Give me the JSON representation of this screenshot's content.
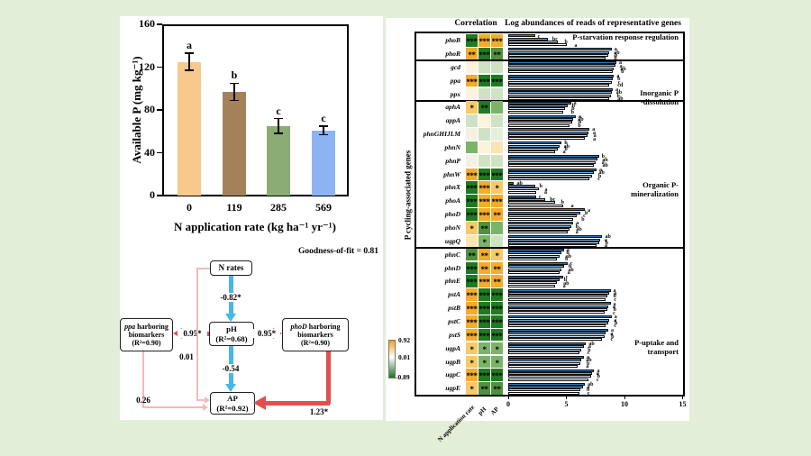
{
  "chart_data": [
    {
      "type": "bar",
      "title": "",
      "ylabel": "Available P  (mg kg⁻¹)",
      "xlabel": "N application rate (kg ha⁻¹ yr⁻¹)",
      "categories": [
        "0",
        "119",
        "285",
        "569"
      ],
      "values": [
        125,
        97,
        65,
        61
      ],
      "errors": [
        8,
        8,
        7,
        4
      ],
      "sig_letters": [
        "a",
        "b",
        "c",
        "c"
      ],
      "bar_colors": [
        "#f7c98c",
        "#a5815a",
        "#8bac72",
        "#8cb4f2"
      ],
      "ylim": [
        0,
        160
      ],
      "yticks": [
        0,
        40,
        80,
        120,
        160
      ]
    },
    {
      "type": "heatmap+barh",
      "title_correlation": "Correlation",
      "title_bars": "Log abundances of reads of representative genes",
      "ylabel": "P cycling-associated genes",
      "correlation_columns": [
        "N application rate",
        "pH",
        "AP"
      ],
      "xticks": [
        0,
        5,
        10,
        15
      ],
      "xlim": [
        0,
        15
      ],
      "colorbar": {
        "max_label": "0.92",
        "mid_label": "0.01",
        "min_label": "-0.89",
        "top_color": "#f0a01e",
        "mid_color": "#ffffff",
        "bottom_color": "#1c741c"
      },
      "bar_series_colors": [
        "#2e75b6",
        "#6fa8dc",
        "#c9ddf0",
        "#ffffff"
      ],
      "groups": [
        {
          "label": "P-starvation response regulation",
          "genes": [
            {
              "name": "phoB",
              "cell_colors": [
                "#217a21",
                "#f4ac2a",
                "#f4ac2a"
              ],
              "stars": [
                "***",
                "***",
                "***"
              ],
              "bars": [
                2.3,
                3.4,
                4.3,
                5.0
              ],
              "letters": [
                "c",
                "bc",
                "b",
                "a"
              ]
            },
            {
              "name": "phoR",
              "cell_colors": [
                "#f4ac2a",
                "#217a21",
                "#4f9140"
              ],
              "stars": [
                "**",
                "***",
                "**"
              ],
              "bars": [
                8.9,
                8.7,
                8.6,
                8.4
              ],
              "letters": [
                "a",
                "ab",
                "b",
                "b"
              ]
            }
          ]
        },
        {
          "label": "Inorganic P\n-dissolution",
          "genes": [
            {
              "name": "gcd",
              "cell_colors": [
                "#fdf3dc",
                "#cfe3c4",
                "#cfe3c4"
              ],
              "stars": [
                "",
                "",
                ""
              ],
              "bars": [
                9.3,
                9.2,
                9.1,
                9.0
              ],
              "letters": [
                "a",
                "a",
                "ab",
                "b"
              ]
            },
            {
              "name": "ppa",
              "cell_colors": [
                "#f4ac2a",
                "#217a21",
                "#217a21"
              ],
              "stars": [
                "***",
                "***",
                "***"
              ],
              "bars": [
                9.1,
                9.0,
                8.9,
                8.7
              ],
              "letters": [
                "a",
                "b",
                "c",
                "cd"
              ]
            },
            {
              "name": "ppx",
              "cell_colors": [
                "#fdf3dc",
                "#cfe3c4",
                "#cfe3c4"
              ],
              "stars": [
                "",
                "",
                ""
              ],
              "bars": [
                9.0,
                8.9,
                8.8,
                8.7
              ],
              "letters": [
                "a",
                "ab",
                "b",
                "ab"
              ]
            }
          ]
        },
        {
          "label": "Organic P-mineralization",
          "genes": [
            {
              "name": "aphA",
              "cell_colors": [
                "#f8c968",
                "#217a21",
                "#7ab468"
              ],
              "stars": [
                "*",
                "**",
                ""
              ],
              "bars": [
                5.4,
                5.1,
                4.9,
                4.7
              ],
              "letters": [
                "a",
                "b",
                "b",
                "b"
              ]
            },
            {
              "name": "appA",
              "cell_colors": [
                "#cfe3c4",
                "#fdf3dc",
                "#cfe3c4"
              ],
              "stars": [
                "",
                "",
                ""
              ],
              "bars": [
                5.8,
                5.6,
                5.5,
                5.3
              ],
              "letters": [
                "a",
                "ab",
                "b",
                "b"
              ]
            },
            {
              "name": "phnGHIJLM",
              "cell_colors": [
                "#f4f1e4",
                "#cfe3c4",
                "#e4efdc"
              ],
              "stars": [
                "",
                "",
                ""
              ],
              "bars": [
                7.0,
                6.9,
                6.8,
                6.6
              ],
              "letters": [
                "a",
                "a",
                "a",
                "a"
              ]
            },
            {
              "name": "phnN",
              "cell_colors": [
                "#7ab468",
                "#fdf3dc",
                "#fbe4b4"
              ],
              "stars": [
                "",
                "",
                ""
              ],
              "bars": [
                4.6,
                4.4,
                4.3,
                4.0
              ],
              "letters": [
                "b",
                "ab",
                "b",
                "a"
              ]
            },
            {
              "name": "phnP",
              "cell_colors": [
                "#f4f1e4",
                "#cfe3c4",
                "#cfe3c4"
              ],
              "stars": [
                "",
                "",
                ""
              ],
              "bars": [
                7.8,
                7.7,
                7.5,
                7.4
              ],
              "letters": [
                "b",
                "ab",
                "a",
                "ab"
              ]
            },
            {
              "name": "phnW",
              "cell_colors": [
                "#f4ac2a",
                "#217a21",
                "#217a21"
              ],
              "stars": [
                "***",
                "***",
                "***"
              ],
              "bars": [
                7.6,
                7.4,
                7.2,
                7.0
              ],
              "letters": [
                "a",
                "ab",
                "b",
                "c"
              ]
            },
            {
              "name": "phnX",
              "cell_colors": [
                "#217a21",
                "#f4ac2a",
                "#f8c968"
              ],
              "stars": [
                "***",
                "***",
                "*"
              ],
              "bars": [
                0.5,
                2.3,
                2.6,
                2.4
              ],
              "letters": [
                "ab",
                "b",
                "a",
                "a"
              ]
            },
            {
              "name": "phoA",
              "cell_colors": [
                "#217a21",
                "#f4ac2a",
                "#f4ac2a"
              ],
              "stars": [
                "***",
                "***",
                "***"
              ],
              "bars": [
                2.4,
                3.2,
                4.0,
                4.7
              ],
              "letters": [
                "c",
                "bc",
                "b",
                "a"
              ]
            },
            {
              "name": "phoD",
              "cell_colors": [
                "#217a21",
                "#f4ac2a",
                "#f4ac2a"
              ],
              "stars": [
                "***",
                "***",
                "**"
              ],
              "bars": [
                6.6,
                6.2,
                5.9,
                5.6
              ],
              "letters": [
                "a",
                "b",
                "c",
                "b"
              ]
            },
            {
              "name": "phoN",
              "cell_colors": [
                "#f8c968",
                "#4f9140",
                "#7ab468"
              ],
              "stars": [
                "*",
                "**",
                ""
              ],
              "bars": [
                5.6,
                5.4,
                5.3,
                5.1
              ],
              "letters": [
                "a",
                "b",
                "ab",
                "a"
              ]
            },
            {
              "name": "ugpQ",
              "cell_colors": [
                "#fbe4b4",
                "#7ab468",
                "#cfe3c4"
              ],
              "stars": [
                "",
                "*",
                ""
              ],
              "bars": [
                8.1,
                7.9,
                7.8,
                7.6
              ],
              "letters": [
                "ab",
                "a",
                "b",
                "a"
              ]
            }
          ]
        },
        {
          "label": "P-uptake and transport",
          "genes": [
            {
              "name": "phnC",
              "cell_colors": [
                "#4f9140",
                "#f4ac2a",
                "#f8c968"
              ],
              "stars": [
                "**",
                "**",
                "*"
              ],
              "bars": [
                4.8,
                4.6,
                4.4,
                4.2
              ],
              "letters": [
                "a",
                "b",
                "ab",
                "b"
              ]
            },
            {
              "name": "phnD",
              "cell_colors": [
                "#217a21",
                "#f4ac2a",
                "#f4ac2a"
              ],
              "stars": [
                "***",
                "**",
                "**"
              ],
              "bars": [
                5.1,
                4.8,
                4.6,
                4.4
              ],
              "letters": [
                "c",
                "b",
                "ab",
                "a"
              ]
            },
            {
              "name": "phnE",
              "cell_colors": [
                "#217a21",
                "#f4ac2a",
                "#f4ac2a"
              ],
              "stars": [
                "***",
                "***",
                "**"
              ],
              "bars": [
                4.7,
                4.4,
                4.2,
                4.0
              ],
              "letters": [
                "c",
                "b",
                "ab",
                "a"
              ]
            },
            {
              "name": "pstA",
              "cell_colors": [
                "#f4ac2a",
                "#217a21",
                "#217a21"
              ],
              "stars": [
                "***",
                "***",
                "***"
              ],
              "bars": [
                8.8,
                8.7,
                8.5,
                8.4
              ],
              "letters": [
                "a",
                "a",
                "b",
                "c"
              ]
            },
            {
              "name": "pstB",
              "cell_colors": [
                "#f4ac2a",
                "#217a21",
                "#217a21"
              ],
              "stars": [
                "***",
                "***",
                "***"
              ],
              "bars": [
                8.8,
                8.6,
                8.5,
                8.3
              ],
              "letters": [
                "a",
                "a",
                "b",
                "c"
              ]
            },
            {
              "name": "pstC",
              "cell_colors": [
                "#f4ac2a",
                "#217a21",
                "#217a21"
              ],
              "stars": [
                "***",
                "***",
                "***"
              ],
              "bars": [
                8.9,
                8.7,
                8.6,
                8.4
              ],
              "letters": [
                "a",
                "a",
                "b",
                "c"
              ]
            },
            {
              "name": "pstS",
              "cell_colors": [
                "#f4ac2a",
                "#217a21",
                "#217a21"
              ],
              "stars": [
                "***",
                "***",
                "***"
              ],
              "bars": [
                8.6,
                8.4,
                8.3,
                8.1
              ],
              "letters": [
                "a",
                "a",
                "b",
                "c"
              ]
            },
            {
              "name": "ugpA",
              "cell_colors": [
                "#f8c968",
                "#7ab468",
                "#7ab468"
              ],
              "stars": [
                "*",
                "*",
                "*"
              ],
              "bars": [
                6.7,
                6.5,
                6.3,
                6.1
              ],
              "letters": [
                "ab",
                "a",
                "b",
                "c"
              ]
            },
            {
              "name": "ugpB",
              "cell_colors": [
                "#f8c968",
                "#7ab468",
                "#7ab468"
              ],
              "stars": [
                "*",
                "*",
                "*"
              ],
              "bars": [
                6.5,
                6.3,
                6.2,
                6.0
              ],
              "letters": [
                "a",
                "ab",
                "b",
                "a"
              ]
            },
            {
              "name": "ugpC",
              "cell_colors": [
                "#f4ac2a",
                "#217a21",
                "#217a21"
              ],
              "stars": [
                "***",
                "***",
                "***"
              ],
              "bars": [
                7.4,
                7.2,
                7.1,
                6.9
              ],
              "letters": [
                "a",
                "a",
                "b",
                "c"
              ]
            },
            {
              "name": "ugpE",
              "cell_colors": [
                "#f8c968",
                "#4f9140",
                "#4f9140"
              ],
              "stars": [
                "*",
                "**",
                "**"
              ],
              "bars": [
                6.6,
                6.4,
                6.2,
                6.1
              ],
              "letters": [
                "ab",
                "a",
                "b",
                "c"
              ]
            }
          ]
        }
      ]
    }
  ],
  "sem_diagram": {
    "goodness_of_fit": "Goodness-of-fit = 0.81",
    "nodes": {
      "n_rates": "N rates",
      "ph_line1": "pH",
      "ph_line2": "(R²=0.68)",
      "ppa_gene": "ppa",
      "ppa_line1_rest": " harboring",
      "ppa_line2": "biomarkers",
      "ppa_line3": "(R²=0.90)",
      "phod_gene": "phoD",
      "phod_line1_rest": " harboring",
      "phod_line2": "biomarkers",
      "phod_line3": "(R²=0.90)",
      "ap_line1": "AP",
      "ap_line2": "(R²=0.92)"
    },
    "paths": {
      "n_to_ph": "-0.82*",
      "ph_to_ppa": "0.95*",
      "ph_to_phod": "0.95*",
      "ph_to_ap": "-0.54",
      "n_to_ap": "0.01",
      "ppa_to_ap": "0.26",
      "phod_to_ap": "1.23*"
    },
    "colors": {
      "negative_arrow": "#45b8e8",
      "positive_arrow": "#e05050",
      "ns_arrow": "#f5b9b9"
    }
  }
}
